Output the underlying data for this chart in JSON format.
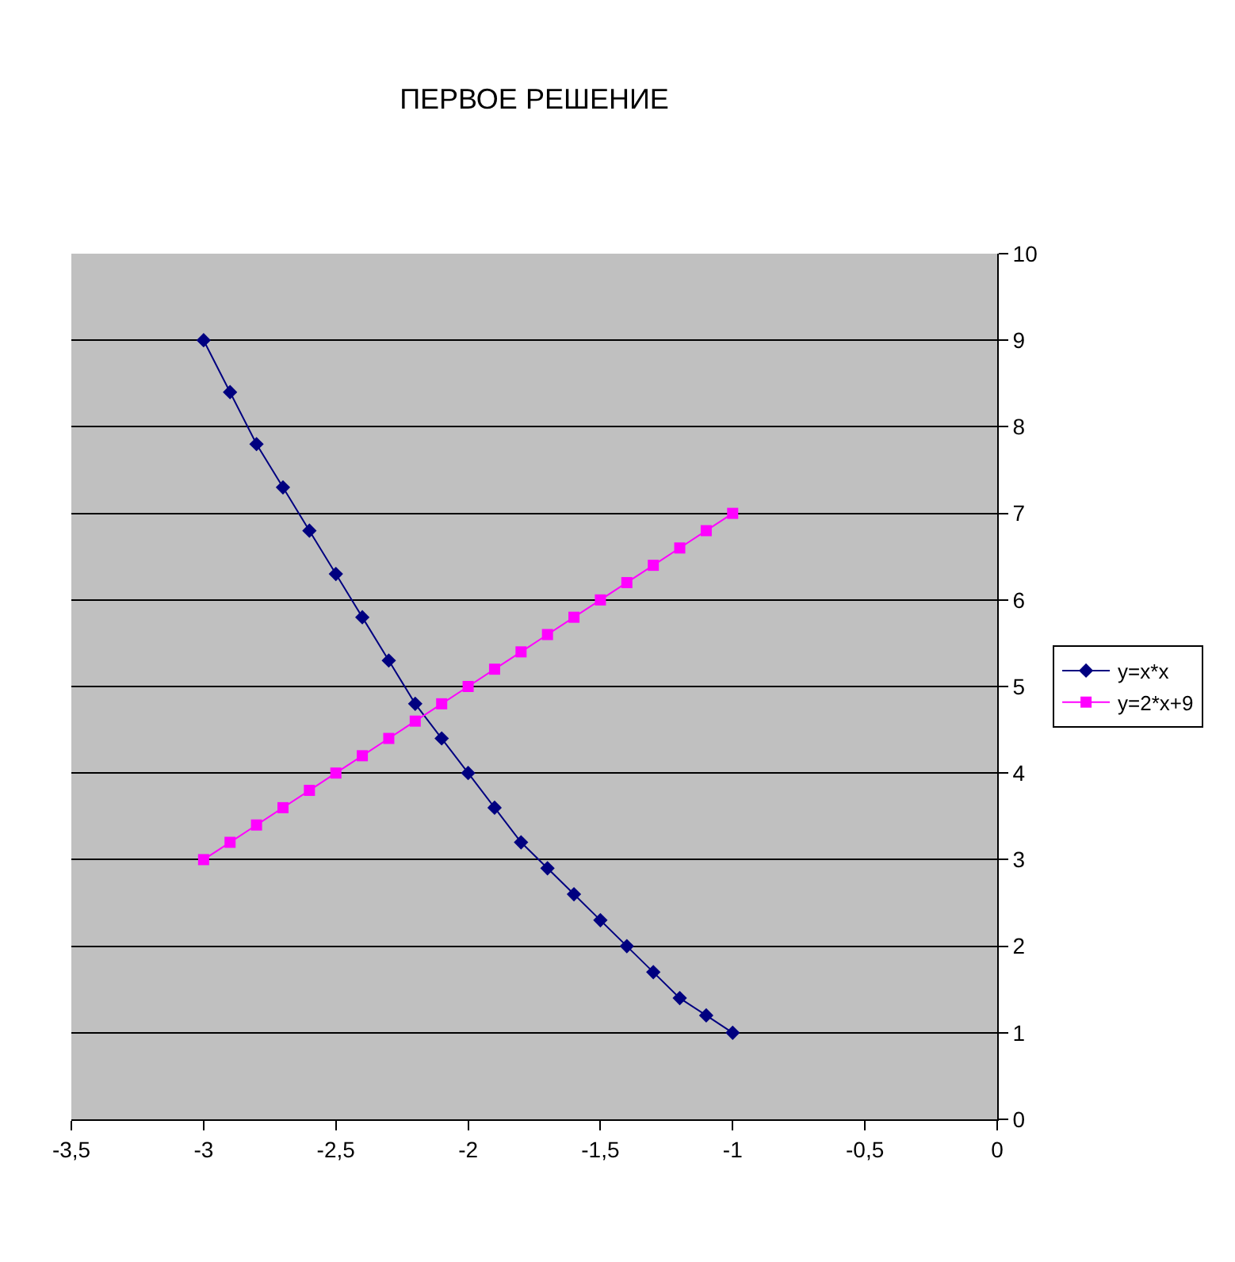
{
  "chart_data": {
    "type": "line",
    "title": "ПЕРВОЕ РЕШЕНИЕ",
    "x": [
      -3,
      -2.9,
      -2.8,
      -2.7,
      -2.6,
      -2.5,
      -2.4,
      -2.3,
      -2.2,
      -2.1,
      -2,
      -1.9,
      -1.8,
      -1.7,
      -1.6,
      -1.5,
      -1.4,
      -1.3,
      -1.2,
      -1.1,
      -1
    ],
    "series": [
      {
        "name": "y=x*x",
        "color": "#000080",
        "marker": "diamond",
        "values": [
          9,
          8.4,
          7.8,
          7.3,
          6.8,
          6.3,
          5.8,
          5.3,
          4.8,
          4.4,
          4,
          3.6,
          3.2,
          2.9,
          2.6,
          2.3,
          2,
          1.7,
          1.4,
          1.2,
          1
        ]
      },
      {
        "name": "y=2*x+9",
        "color": "#ff00ff",
        "marker": "square",
        "values": [
          3,
          3.2,
          3.4,
          3.6,
          3.8,
          4,
          4.2,
          4.4,
          4.6,
          4.8,
          5,
          5.2,
          5.4,
          5.6,
          5.8,
          6,
          6.2,
          6.4,
          6.6,
          6.8,
          7
        ]
      }
    ],
    "xlim": [
      -3.5,
      0
    ],
    "xticks": [
      {
        "value": -3.5,
        "label": "-3,5"
      },
      -3,
      {
        "value": -2.5,
        "label": "-2,5"
      },
      -2,
      {
        "value": -1.5,
        "label": "-1,5"
      },
      -1,
      {
        "value": -0.5,
        "label": "-0,5"
      },
      0
    ],
    "ylim": [
      0,
      10
    ],
    "yticks": [
      0,
      1,
      2,
      3,
      4,
      5,
      6,
      7,
      8,
      9,
      10
    ],
    "grid": "y",
    "legend": "right",
    "line_style": "solid"
  }
}
